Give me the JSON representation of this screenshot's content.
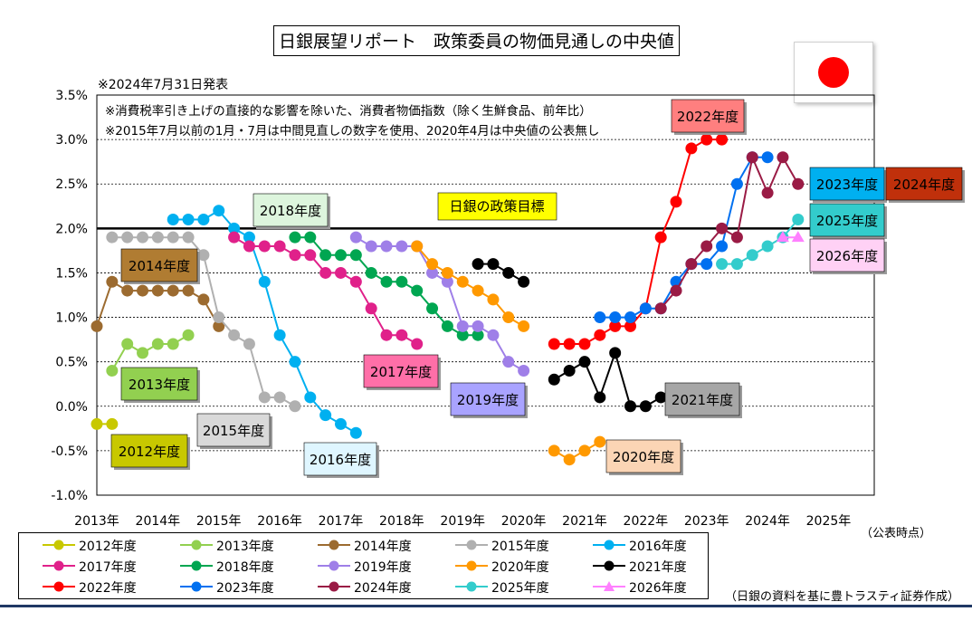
{
  "title": "日銀展望リポート　政策委員の物価見通しの中央値",
  "date_note": "※2024年7月31日発表",
  "notes": [
    "※消費税率引き上げの直接的な影響を除いた、消費者物価指数（除く生鮮食品、前年比）",
    "※2015年7月以前の1月・7月は中間見直しの数字を使用、2020年4月は中央値の公表無し"
  ],
  "x_axis_note": "（公表時点）",
  "source": "（日銀の資料を基に豊トラスティ証券作成）",
  "flag_icon": "japan-flag-icon",
  "target_label": "日銀の政策目標",
  "chart_data": {
    "type": "line",
    "xlabel": "",
    "ylabel": "",
    "x_ticks": [
      "2013年",
      "2014年",
      "2015年",
      "2016年",
      "2017年",
      "2018年",
      "2019年",
      "2020年",
      "2021年",
      "2022年",
      "2023年",
      "2024年",
      "2025年"
    ],
    "y_ticks": [
      "3.5%",
      "3.0%",
      "2.5%",
      "2.0%",
      "1.5%",
      "1.0%",
      "0.5%",
      "0.0%",
      "-0.5%",
      "-1.0%"
    ],
    "ylim": [
      -1.0,
      3.5
    ],
    "xlim": [
      2013.0,
      2025.75
    ],
    "grid": "horizontal dashed",
    "reference_line": 2.0,
    "series": [
      {
        "name": "2012年度",
        "color": "#c8c800",
        "points": [
          [
            2013.0,
            -0.2
          ],
          [
            2013.25,
            -0.2
          ]
        ]
      },
      {
        "name": "2013年度",
        "color": "#92d050",
        "points": [
          [
            2013.25,
            0.4
          ],
          [
            2013.5,
            0.7
          ],
          [
            2013.75,
            0.6
          ],
          [
            2014.0,
            0.7
          ],
          [
            2014.25,
            0.7
          ],
          [
            2014.5,
            0.8
          ]
        ]
      },
      {
        "name": "2014年度",
        "color": "#9c6b30",
        "points": [
          [
            2013.0,
            0.9
          ],
          [
            2013.25,
            1.4
          ],
          [
            2013.5,
            1.3
          ],
          [
            2013.75,
            1.3
          ],
          [
            2014.0,
            1.3
          ],
          [
            2014.25,
            1.3
          ],
          [
            2014.5,
            1.3
          ],
          [
            2014.75,
            1.2
          ],
          [
            2015.0,
            0.9
          ]
        ]
      },
      {
        "name": "2015年度",
        "color": "#b0b0b0",
        "points": [
          [
            2013.25,
            1.9
          ],
          [
            2013.5,
            1.9
          ],
          [
            2013.75,
            1.9
          ],
          [
            2014.0,
            1.9
          ],
          [
            2014.25,
            1.9
          ],
          [
            2014.5,
            1.9
          ],
          [
            2014.75,
            1.7
          ],
          [
            2015.0,
            1.0
          ],
          [
            2015.25,
            0.8
          ],
          [
            2015.5,
            0.7
          ],
          [
            2015.75,
            0.1
          ],
          [
            2016.0,
            0.1
          ],
          [
            2016.25,
            0.0
          ]
        ]
      },
      {
        "name": "2016年度",
        "color": "#00b0f0",
        "points": [
          [
            2014.25,
            2.1
          ],
          [
            2014.5,
            2.1
          ],
          [
            2014.75,
            2.1
          ],
          [
            2015.0,
            2.2
          ],
          [
            2015.25,
            2.0
          ],
          [
            2015.5,
            1.9
          ],
          [
            2015.75,
            1.4
          ],
          [
            2016.0,
            0.8
          ],
          [
            2016.25,
            0.5
          ],
          [
            2016.5,
            0.1
          ],
          [
            2016.75,
            -0.1
          ],
          [
            2017.0,
            -0.2
          ],
          [
            2017.25,
            -0.3
          ]
        ]
      },
      {
        "name": "2017年度",
        "color": "#e0218a",
        "points": [
          [
            2015.25,
            1.9
          ],
          [
            2015.5,
            1.8
          ],
          [
            2015.75,
            1.8
          ],
          [
            2016.0,
            1.8
          ],
          [
            2016.25,
            1.7
          ],
          [
            2016.5,
            1.7
          ],
          [
            2016.75,
            1.5
          ],
          [
            2017.0,
            1.5
          ],
          [
            2017.25,
            1.4
          ],
          [
            2017.5,
            1.1
          ],
          [
            2017.75,
            0.8
          ],
          [
            2018.0,
            0.8
          ],
          [
            2018.25,
            0.7
          ]
        ]
      },
      {
        "name": "2018年度",
        "color": "#00a651",
        "points": [
          [
            2016.25,
            1.9
          ],
          [
            2016.5,
            1.9
          ],
          [
            2016.75,
            1.7
          ],
          [
            2017.0,
            1.7
          ],
          [
            2017.25,
            1.7
          ],
          [
            2017.5,
            1.5
          ],
          [
            2017.75,
            1.4
          ],
          [
            2018.0,
            1.4
          ],
          [
            2018.25,
            1.3
          ],
          [
            2018.5,
            1.1
          ],
          [
            2018.75,
            0.9
          ],
          [
            2019.0,
            0.8
          ],
          [
            2019.25,
            0.8
          ]
        ]
      },
      {
        "name": "2019年度",
        "color": "#9f7fe8",
        "points": [
          [
            2017.25,
            1.9
          ],
          [
            2017.5,
            1.8
          ],
          [
            2017.75,
            1.8
          ],
          [
            2018.0,
            1.8
          ],
          [
            2018.25,
            1.8
          ],
          [
            2018.5,
            1.5
          ],
          [
            2018.75,
            1.4
          ],
          [
            2019.0,
            0.9
          ],
          [
            2019.25,
            0.9
          ],
          [
            2019.5,
            0.8
          ],
          [
            2019.75,
            0.5
          ],
          [
            2020.0,
            0.4
          ]
        ]
      },
      {
        "name": "2020年度",
        "color": "#ff9900",
        "points": [
          [
            2018.25,
            1.8
          ],
          [
            2018.5,
            1.6
          ],
          [
            2018.75,
            1.5
          ],
          [
            2019.0,
            1.4
          ],
          [
            2019.25,
            1.3
          ],
          [
            2019.5,
            1.2
          ],
          [
            2019.75,
            1.0
          ],
          [
            2020.0,
            0.9
          ],
          [
            null,
            null
          ],
          [
            2020.5,
            -0.5
          ],
          [
            2020.75,
            -0.6
          ],
          [
            2021.0,
            -0.5
          ],
          [
            2021.25,
            -0.4
          ]
        ]
      },
      {
        "name": "2021年度",
        "color": "#000000",
        "points": [
          [
            2019.25,
            1.6
          ],
          [
            2019.5,
            1.6
          ],
          [
            2019.75,
            1.5
          ],
          [
            2020.0,
            1.4
          ],
          [
            null,
            null
          ],
          [
            2020.5,
            0.3
          ],
          [
            2020.75,
            0.4
          ],
          [
            2021.0,
            0.5
          ],
          [
            2021.25,
            0.1
          ],
          [
            2021.5,
            0.6
          ],
          [
            2021.75,
            0.0
          ],
          [
            2022.0,
            0.0
          ],
          [
            2022.25,
            0.1
          ]
        ]
      },
      {
        "name": "2022年度",
        "color": "#ff0000",
        "points": [
          [
            2020.5,
            0.7
          ],
          [
            2020.75,
            0.7
          ],
          [
            2021.0,
            0.7
          ],
          [
            2021.25,
            0.8
          ],
          [
            2021.5,
            0.9
          ],
          [
            2021.75,
            0.9
          ],
          [
            2022.0,
            1.1
          ],
          [
            2022.25,
            1.9
          ],
          [
            2022.5,
            2.3
          ],
          [
            2022.75,
            2.9
          ],
          [
            2023.0,
            3.0
          ],
          [
            2023.25,
            3.0
          ]
        ]
      },
      {
        "name": "2023年度",
        "color": "#0070f0",
        "points": [
          [
            2021.25,
            1.0
          ],
          [
            2021.5,
            1.0
          ],
          [
            2021.75,
            1.0
          ],
          [
            2022.0,
            1.1
          ],
          [
            2022.25,
            1.1
          ],
          [
            2022.5,
            1.4
          ],
          [
            2022.75,
            1.6
          ],
          [
            2023.0,
            1.6
          ],
          [
            2023.25,
            1.8
          ],
          [
            2023.5,
            2.5
          ],
          [
            2023.75,
            2.8
          ],
          [
            2024.0,
            2.8
          ]
        ]
      },
      {
        "name": "2024年度",
        "color": "#9a1b45",
        "points": [
          [
            2022.25,
            1.1
          ],
          [
            2022.5,
            1.3
          ],
          [
            2022.75,
            1.6
          ],
          [
            2023.0,
            1.8
          ],
          [
            2023.25,
            2.0
          ],
          [
            2023.5,
            1.9
          ],
          [
            2023.75,
            2.8
          ],
          [
            2024.0,
            2.4
          ],
          [
            2024.25,
            2.8
          ],
          [
            2024.5,
            2.5
          ]
        ]
      },
      {
        "name": "2025年度",
        "color": "#33cccc",
        "points": [
          [
            2023.25,
            1.6
          ],
          [
            2023.5,
            1.6
          ],
          [
            2023.75,
            1.7
          ],
          [
            2024.0,
            1.8
          ],
          [
            2024.25,
            1.9
          ],
          [
            2024.5,
            2.1
          ]
        ]
      },
      {
        "name": "2026年度",
        "color": "#ff80ff",
        "marker": "triangle",
        "points": [
          [
            2024.25,
            1.9
          ],
          [
            2024.5,
            1.9
          ]
        ]
      }
    ]
  },
  "annotations": [
    {
      "text": "2012年度",
      "bg": "#c8c800",
      "fg": "#000000"
    },
    {
      "text": "2013年度",
      "bg": "#92d050",
      "fg": "#000000"
    },
    {
      "text": "2014年度",
      "bg": "#b07c32",
      "fg": "#000000"
    },
    {
      "text": "2015年度",
      "bg": "#d9d9d9",
      "fg": "#000000"
    },
    {
      "text": "2016年度",
      "bg": "#dff6ff",
      "fg": "#000000"
    },
    {
      "text": "2017年度",
      "bg": "#ff6fa8",
      "fg": "#000000"
    },
    {
      "text": "2018年度",
      "bg": "#ddf5dd",
      "fg": "#000000"
    },
    {
      "text": "2019年度",
      "bg": "#a9a3ff",
      "fg": "#000000"
    },
    {
      "text": "2020年度",
      "bg": "#fbd5b5",
      "fg": "#000000"
    },
    {
      "text": "2021年度",
      "bg": "#a6a6a6",
      "fg": "#000000"
    },
    {
      "text": "2022年度",
      "bg": "#ff7f7f",
      "fg": "#000000"
    },
    {
      "text": "2023年度",
      "bg": "#00b0f0",
      "fg": "#000000"
    },
    {
      "text": "2024年度",
      "bg": "#c0300b",
      "fg": "#000000"
    },
    {
      "text": "2025年度",
      "bg": "#33cccc",
      "fg": "#000000"
    },
    {
      "text": "2026年度",
      "bg": "#ffd1f5",
      "fg": "#000000"
    }
  ]
}
